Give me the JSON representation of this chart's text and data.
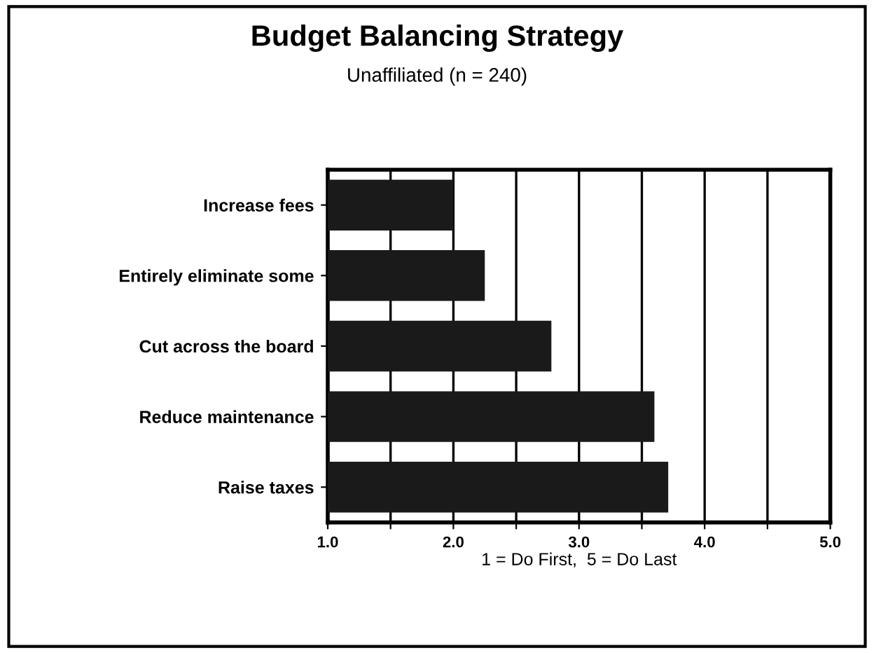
{
  "chart_data": {
    "type": "bar",
    "orientation": "horizontal",
    "title": "Budget Balancing Strategy",
    "subtitle": "Unaffiliated (n = 240)",
    "xlabel": "1 = Do First,  5 = Do Last",
    "categories": [
      "Increase fees",
      "Entirely eliminate some",
      "Cut across the board",
      "Reduce maintenance",
      "Raise taxes"
    ],
    "values": [
      2.0,
      2.25,
      2.78,
      3.6,
      3.71
    ],
    "color": "#1a1a1a",
    "xlim": [
      1.0,
      5.0
    ],
    "xticks": [
      {
        "value": 1.0,
        "label": "1.0"
      },
      {
        "value": 1.5,
        "label": null
      },
      {
        "value": 2.0,
        "label": "2.0"
      },
      {
        "value": 2.5,
        "label": null
      },
      {
        "value": 3.0,
        "label": "3.0"
      },
      {
        "value": 3.5,
        "label": null
      },
      {
        "value": 4.0,
        "label": "4.0"
      },
      {
        "value": 4.5,
        "label": null
      },
      {
        "value": 5.0,
        "label": "5.0"
      }
    ],
    "grid": "x"
  }
}
